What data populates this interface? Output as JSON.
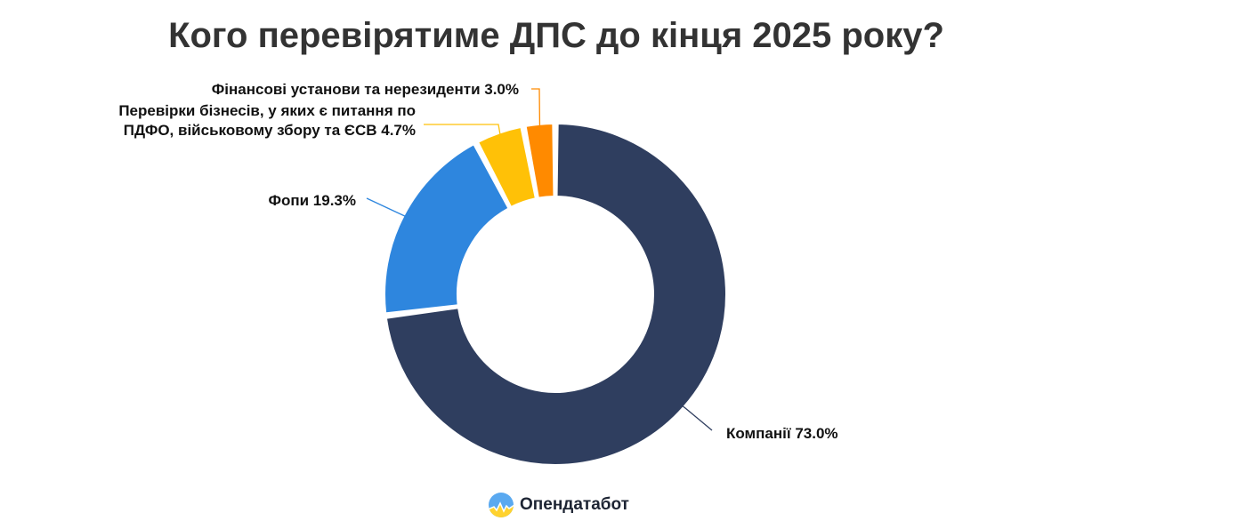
{
  "title": "Кого перевірятиме ДПС до кінця 2025 року?",
  "brand": {
    "name": "Опендатабот",
    "logo_icon": "sun-logo-icon"
  },
  "chart_data": {
    "type": "pie",
    "donut": true,
    "title": "Кого перевірятиме ДПС до кінця 2025 року?",
    "slices": [
      {
        "name": "Компанії",
        "value": 73.0,
        "label_lines": [
          "Компанії 73.0%"
        ],
        "color": "#2f3e5f"
      },
      {
        "name": "Фопи",
        "value": 19.3,
        "label_lines": [
          "Фопи 19.3%"
        ],
        "color": "#2e86de"
      },
      {
        "name": "Перевірки бізнесів, у яких є питання по ПДФО, військовому збору та ЄСВ",
        "value": 4.7,
        "label_lines": [
          "Перевірки бізнесів, у яких є питання по",
          "ПДФО, військовому збору та ЄСВ 4.7%"
        ],
        "color": "#ffc107"
      },
      {
        "name": "Фінансові установи та нерезиденти",
        "value": 3.0,
        "label_lines": [
          "Фінансові установи та нерезиденти 3.0%"
        ],
        "color": "#ff8a00"
      }
    ],
    "legend": "none",
    "labels": "outside-with-leader-lines"
  }
}
